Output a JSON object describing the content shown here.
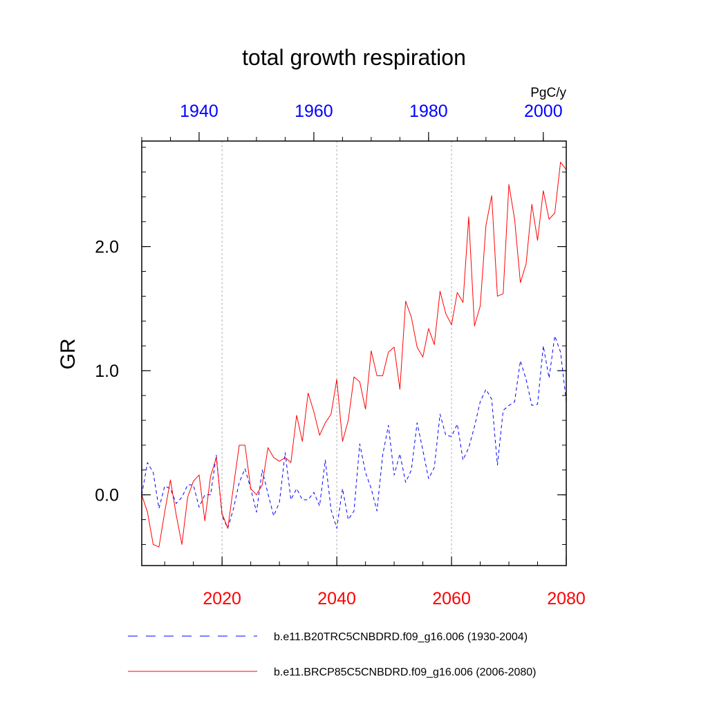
{
  "chart_data": {
    "type": "line",
    "title": "total growth respiration",
    "ylabel": "GR",
    "units": "PgC/y",
    "ylim": [
      -0.57,
      2.85
    ],
    "ytick_labels": [
      {
        "value": 0.0,
        "label": "0.0"
      },
      {
        "value": 1.0,
        "label": "1.0"
      },
      {
        "value": 2.0,
        "label": "2.0"
      }
    ],
    "ytick_minor_step": 0.2,
    "x_bottom": {
      "range": [
        2006,
        2080
      ],
      "color": "#ff0000",
      "ticks": [
        2020,
        2040,
        2060,
        2080
      ],
      "tick_labels": [
        "2020",
        "2040",
        "2060",
        "2080"
      ],
      "minor_step": 5
    },
    "x_top": {
      "range": [
        1930,
        2004
      ],
      "color": "#0000ff",
      "ticks": [
        1940,
        1960,
        1980,
        2000
      ],
      "tick_labels": [
        "1940",
        "1960",
        "1980",
        "2000"
      ],
      "minor_step": 5
    },
    "vertical_gridlines_at_bottom_x": [
      2020,
      2040,
      2060
    ],
    "series": [
      {
        "name": "b.e11.B20TRC5CNBDRD.f09_g16.006 (1930-2004)",
        "axis": "top",
        "color": "#0000ff",
        "style": "dashed",
        "x_start": 1930,
        "values": [
          0.0,
          0.26,
          0.18,
          -0.11,
          0.07,
          0.05,
          -0.07,
          -0.02,
          0.08,
          0.08,
          -0.1,
          0.0,
          0.0,
          0.32,
          -0.17,
          -0.27,
          -0.11,
          0.1,
          0.21,
          0.05,
          -0.14,
          0.2,
          0.01,
          -0.17,
          -0.06,
          0.34,
          -0.04,
          0.05,
          -0.04,
          -0.04,
          0.02,
          -0.09,
          0.28,
          -0.12,
          -0.27,
          0.05,
          -0.2,
          -0.13,
          0.41,
          0.18,
          0.05,
          -0.13,
          0.32,
          0.56,
          0.16,
          0.33,
          0.1,
          0.2,
          0.58,
          0.36,
          0.13,
          0.22,
          0.65,
          0.48,
          0.47,
          0.57,
          0.28,
          0.38,
          0.55,
          0.75,
          0.85,
          0.77,
          0.24,
          0.68,
          0.72,
          0.75,
          1.08,
          0.93,
          0.72,
          0.73,
          1.2,
          0.94,
          1.28,
          1.15,
          0.75
        ]
      },
      {
        "name": "b.e11.BRCP85C5CNBDRD.f09_g16.006 (2006-2080)",
        "axis": "bottom",
        "color": "#ff0000",
        "style": "solid",
        "x_start": 2006,
        "values": [
          0.0,
          -0.14,
          -0.4,
          -0.42,
          -0.14,
          0.12,
          -0.16,
          -0.4,
          -0.02,
          0.11,
          0.16,
          -0.21,
          0.15,
          0.3,
          -0.15,
          -0.27,
          0.07,
          0.4,
          0.4,
          0.05,
          0.0,
          0.08,
          0.38,
          0.3,
          0.27,
          0.3,
          0.26,
          0.64,
          0.43,
          0.82,
          0.67,
          0.48,
          0.58,
          0.65,
          0.93,
          0.43,
          0.6,
          0.95,
          0.91,
          0.69,
          1.16,
          0.96,
          0.96,
          1.15,
          1.19,
          0.85,
          1.56,
          1.43,
          1.19,
          1.11,
          1.34,
          1.21,
          1.64,
          1.46,
          1.37,
          1.63,
          1.55,
          2.24,
          1.36,
          1.52,
          2.17,
          2.41,
          1.6,
          1.62,
          2.5,
          2.22,
          1.71,
          1.86,
          2.34,
          2.05,
          2.45,
          2.22,
          2.27,
          2.68,
          2.62
        ]
      }
    ],
    "legend": {
      "placement": "bottom",
      "entries": [
        {
          "label": "b.e11.B20TRC5CNBDRD.f09_g16.006 (1930-2004)",
          "color": "#0000ff",
          "style": "dashed"
        },
        {
          "label": "b.e11.BRCP85C5CNBDRD.f09_g16.006 (2006-2080)",
          "color": "#ff0000",
          "style": "solid"
        }
      ]
    }
  }
}
